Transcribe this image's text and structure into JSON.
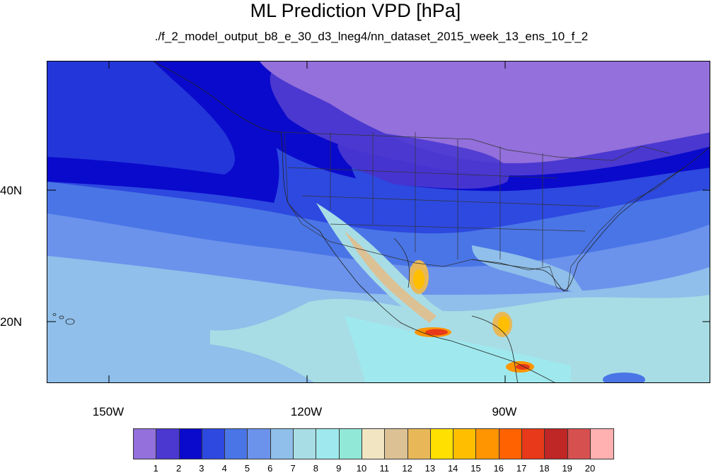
{
  "title": "ML Prediction VPD [hPa]",
  "subtitle": "./f_2_model_output_b8_e_30_d3_lneg4/nn_dataset_2015_week_13_ens_10_f_2",
  "lat_labels": [
    "40N",
    "20N"
  ],
  "lon_labels": [
    "150W",
    "120W",
    "90W"
  ],
  "legend": {
    "labels": [
      "1",
      "2",
      "3",
      "4",
      "5",
      "6",
      "7",
      "8",
      "9",
      "10",
      "11",
      "12",
      "13",
      "14",
      "15",
      "16",
      "17",
      "18",
      "19",
      "20"
    ],
    "colors": [
      "#9370db",
      "#4b38d0",
      "#0a0acc",
      "#2d49e0",
      "#4a75e6",
      "#6b93ec",
      "#8fbfea",
      "#a8dde5",
      "#9fe9ee",
      "#92e8d7",
      "#f2e6c2",
      "#dcc195",
      "#e8b858",
      "#ffe000",
      "#ffbf00",
      "#ff9500",
      "#ff6200",
      "#e8391a",
      "#bf2626",
      "#d65050",
      "#ffb0b0"
    ]
  }
}
